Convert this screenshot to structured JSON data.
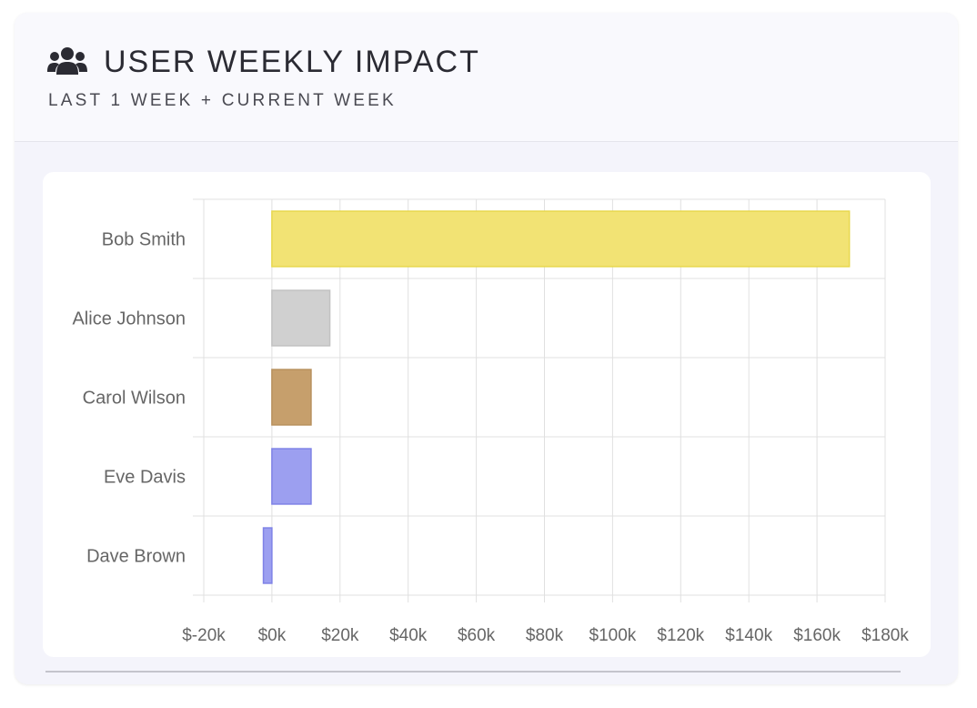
{
  "header": {
    "icon": "users-icon",
    "title": "USER WEEKLY IMPACT",
    "subtitle": "LAST 1 WEEK + CURRENT WEEK"
  },
  "colors": {
    "text": "#2b2b33",
    "axis_text": "#666666",
    "grid": "#e0e0e0"
  },
  "chart_data": {
    "type": "bar",
    "orientation": "horizontal",
    "categories": [
      "Bob Smith",
      "Alice Johnson",
      "Carol Wilson",
      "Eve Davis",
      "Dave Brown"
    ],
    "values": [
      169500,
      17000,
      11500,
      11500,
      -2500
    ],
    "bar_colors": [
      "#f2e374",
      "#d0d0d0",
      "#c69f6c",
      "#9c9ff0",
      "#9c9ff0"
    ],
    "bar_borders": [
      "#e8d84e",
      "#c2c2c2",
      "#b8915e",
      "#7f83e6",
      "#7f83e6"
    ],
    "xlim": [
      -20000,
      180000
    ],
    "x_ticks": [
      -20000,
      0,
      20000,
      40000,
      60000,
      80000,
      100000,
      120000,
      140000,
      160000,
      180000
    ],
    "x_tick_labels": [
      "$-20k",
      "$0k",
      "$20k",
      "$40k",
      "$60k",
      "$80k",
      "$100k",
      "$120k",
      "$140k",
      "$160k",
      "$180k"
    ],
    "grid": true,
    "legend": false
  }
}
